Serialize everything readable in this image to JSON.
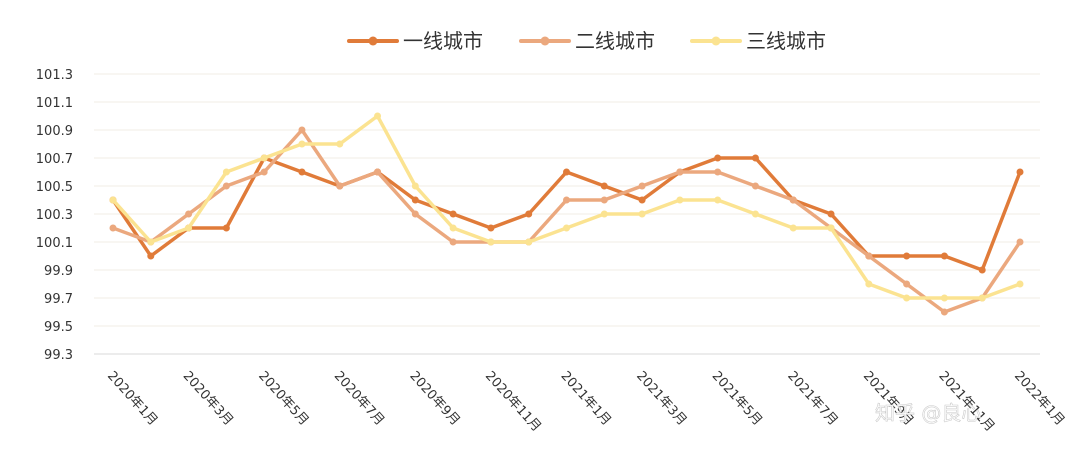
{
  "chart_data": {
    "type": "line",
    "x": [
      "2020年1月",
      "2020年2月",
      "2020年3月",
      "2020年4月",
      "2020年5月",
      "2020年6月",
      "2020年7月",
      "2020年8月",
      "2020年9月",
      "2020年10月",
      "2020年11月",
      "2020年12月",
      "2021年1月",
      "2021年2月",
      "2021年3月",
      "2021年4月",
      "2021年5月",
      "2021年6月",
      "2021年7月",
      "2021年8月",
      "2021年9月",
      "2021年10月",
      "2021年11月",
      "2021年12月",
      "2022年1月"
    ],
    "x_tick_labels": [
      "2020年1月",
      "2020年3月",
      "2020年5月",
      "2020年7月",
      "2020年9月",
      "2020年11月",
      "2021年1月",
      "2021年3月",
      "2021年5月",
      "2021年7月",
      "2021年9月",
      "2021年11月",
      "2022年1月"
    ],
    "series": [
      {
        "name": "一线城市",
        "color": "#e07b39",
        "values": [
          100.4,
          100.0,
          100.2,
          100.2,
          100.7,
          100.6,
          100.5,
          100.6,
          100.4,
          100.3,
          100.2,
          100.3,
          100.6,
          100.5,
          100.4,
          100.6,
          100.7,
          100.7,
          100.4,
          100.3,
          100.0,
          100.0,
          100.0,
          99.9,
          100.6
        ]
      },
      {
        "name": "二线城市",
        "color": "#eba87e",
        "values": [
          100.2,
          100.1,
          100.3,
          100.5,
          100.6,
          100.9,
          100.5,
          100.6,
          100.3,
          100.1,
          100.1,
          100.1,
          100.4,
          100.4,
          100.5,
          100.6,
          100.6,
          100.5,
          100.4,
          100.2,
          100.0,
          99.8,
          99.6,
          99.7,
          100.1
        ]
      },
      {
        "name": "三线城市",
        "color": "#fbe391",
        "values": [
          100.4,
          100.1,
          100.2,
          100.6,
          100.7,
          100.8,
          100.8,
          101.0,
          100.5,
          100.2,
          100.1,
          100.1,
          100.2,
          100.3,
          100.3,
          100.4,
          100.4,
          100.3,
          100.2,
          100.2,
          99.8,
          99.7,
          99.7,
          99.7,
          99.8
        ]
      }
    ],
    "y_ticks": [
      "99.3",
      "99.5",
      "99.7",
      "99.9",
      "100.1",
      "100.3",
      "100.5",
      "100.7",
      "100.9",
      "101.1",
      "101.3"
    ],
    "ylim": [
      99.3,
      101.3
    ],
    "grid": true,
    "legend_position": "top-center"
  },
  "watermark": "知乎 @良心"
}
